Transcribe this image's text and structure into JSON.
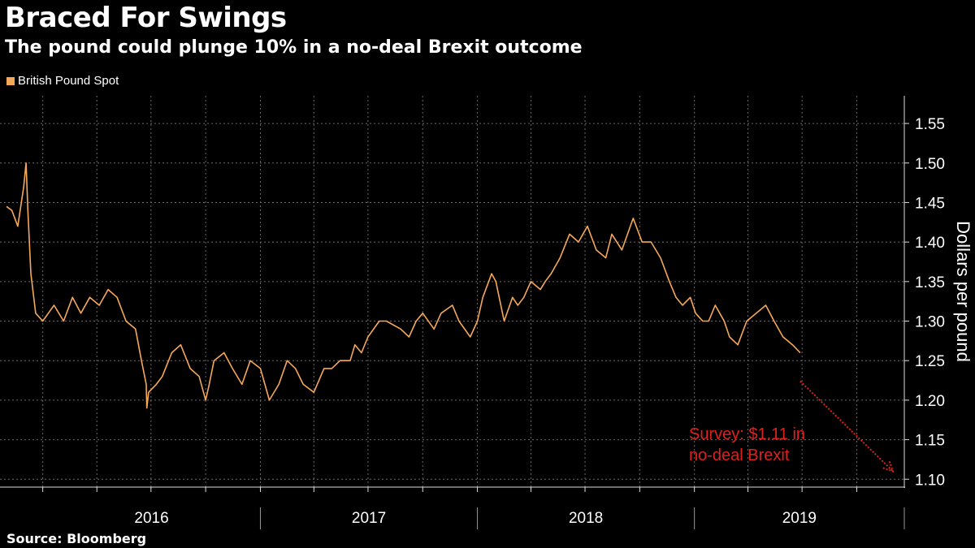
{
  "title": "Braced For Swings",
  "subtitle": "The pound could plunge 10% in a no-deal Brexit outcome",
  "source": "Source: Bloomberg",
  "colors": {
    "series": "#f5a85a",
    "annotation": "#e0201c",
    "grid": "#6a6a6a",
    "background": "#000000"
  },
  "chart_data": {
    "type": "line",
    "title": "Braced For Swings",
    "subtitle": "The pound could plunge 10% in a no-deal Brexit outcome",
    "ylabel": "Dollars per pound",
    "xlabel": "",
    "ylim": [
      1.09,
      1.585
    ],
    "xlim": [
      "2015-11-01",
      "2019-12-20"
    ],
    "y_ticks": [
      "1.10",
      "1.15",
      "1.20",
      "1.25",
      "1.30",
      "1.35",
      "1.40",
      "1.45",
      "1.50",
      "1.55"
    ],
    "x_ticks": [
      "2016",
      "2017",
      "2018",
      "2019"
    ],
    "legend": "top-left",
    "grid": true,
    "series": [
      {
        "name": "British Pound Spot",
        "x": [
          "2015-11-01",
          "2015-11-10",
          "2015-11-20",
          "2015-11-30",
          "2015-12-04",
          "2015-12-07",
          "2015-12-12",
          "2015-12-20",
          "2016-01-01",
          "2016-01-20",
          "2016-02-05",
          "2016-02-20",
          "2016-03-05",
          "2016-03-20",
          "2016-04-05",
          "2016-04-20",
          "2016-05-05",
          "2016-05-20",
          "2016-06-05",
          "2016-06-15",
          "2016-06-23",
          "2016-06-24",
          "2016-06-27",
          "2016-07-10",
          "2016-07-20",
          "2016-08-05",
          "2016-08-20",
          "2016-09-05",
          "2016-09-20",
          "2016-10-01",
          "2016-10-07",
          "2016-10-15",
          "2016-11-01",
          "2016-11-15",
          "2016-12-01",
          "2016-12-15",
          "2017-01-01",
          "2017-01-16",
          "2017-02-01",
          "2017-02-15",
          "2017-03-01",
          "2017-03-14",
          "2017-04-01",
          "2017-04-18",
          "2017-05-01",
          "2017-05-15",
          "2017-06-01",
          "2017-06-09",
          "2017-06-20",
          "2017-07-01",
          "2017-07-20",
          "2017-08-01",
          "2017-08-25",
          "2017-09-08",
          "2017-09-20",
          "2017-10-01",
          "2017-10-20",
          "2017-11-01",
          "2017-11-20",
          "2017-12-01",
          "2017-12-20",
          "2018-01-01",
          "2018-01-10",
          "2018-01-25",
          "2018-02-01",
          "2018-02-15",
          "2018-03-01",
          "2018-03-10",
          "2018-03-20",
          "2018-04-01",
          "2018-04-17",
          "2018-04-25",
          "2018-05-05",
          "2018-05-20",
          "2018-06-05",
          "2018-06-20",
          "2018-07-05",
          "2018-07-20",
          "2018-08-05",
          "2018-08-15",
          "2018-09-01",
          "2018-09-20",
          "2018-10-05",
          "2018-10-20",
          "2018-11-05",
          "2018-11-20",
          "2018-12-01",
          "2018-12-12",
          "2018-12-25",
          "2019-01-03",
          "2019-01-15",
          "2019-01-25",
          "2019-02-05",
          "2019-02-20",
          "2019-03-01",
          "2019-03-15",
          "2019-03-30",
          "2019-04-15",
          "2019-05-01",
          "2019-05-15",
          "2019-05-30",
          "2019-06-15",
          "2019-06-28"
        ],
        "values": [
          1.445,
          1.44,
          1.42,
          1.47,
          1.5,
          1.44,
          1.36,
          1.31,
          1.3,
          1.32,
          1.3,
          1.33,
          1.31,
          1.33,
          1.32,
          1.34,
          1.33,
          1.3,
          1.29,
          1.25,
          1.22,
          1.19,
          1.21,
          1.22,
          1.23,
          1.26,
          1.27,
          1.24,
          1.23,
          1.2,
          1.22,
          1.25,
          1.26,
          1.24,
          1.22,
          1.25,
          1.24,
          1.2,
          1.22,
          1.25,
          1.24,
          1.22,
          1.21,
          1.24,
          1.24,
          1.25,
          1.25,
          1.27,
          1.26,
          1.28,
          1.3,
          1.3,
          1.29,
          1.28,
          1.3,
          1.31,
          1.29,
          1.31,
          1.32,
          1.3,
          1.28,
          1.3,
          1.33,
          1.36,
          1.35,
          1.3,
          1.33,
          1.32,
          1.33,
          1.35,
          1.34,
          1.35,
          1.36,
          1.38,
          1.41,
          1.4,
          1.42,
          1.39,
          1.38,
          1.41,
          1.39,
          1.43,
          1.4,
          1.4,
          1.38,
          1.35,
          1.33,
          1.32,
          1.33,
          1.31,
          1.3,
          1.3,
          1.32,
          1.3,
          1.28,
          1.27,
          1.3,
          1.31,
          1.32,
          1.3,
          1.28,
          1.27,
          1.26
        ]
      }
    ],
    "annotation": {
      "text_line1": "Survey: $1.11 in",
      "text_line2": "no-deal Brexit",
      "from": {
        "x": "2019-06-28",
        "y": 1.224
      },
      "to": {
        "x": "2019-12-01",
        "y": 1.11
      }
    }
  }
}
